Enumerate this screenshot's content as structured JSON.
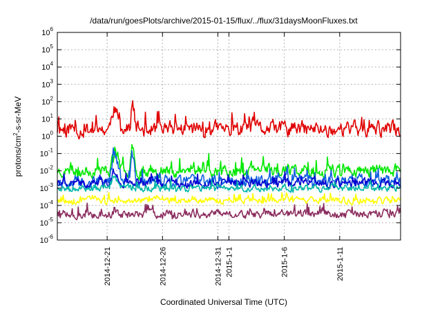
{
  "chart_data": {
    "type": "line",
    "title": "/data/run/goesPlots/archive/2015-01-15/flux/../flux/31daysMoonFluxes.txt",
    "xlabel": "Coordinated Universal Time (UTC)",
    "ylabel_parts": {
      "base": "protons/cm",
      "exp": "2",
      "rest": "-s-sr-MeV"
    },
    "yscale": "log",
    "ylim_exp": [
      -6,
      6
    ],
    "y_ticks": [
      {
        "base": "10",
        "exp": "-6"
      },
      {
        "base": "10",
        "exp": "-5"
      },
      {
        "base": "10",
        "exp": "-4"
      },
      {
        "base": "10",
        "exp": "-3"
      },
      {
        "base": "10",
        "exp": "-2"
      },
      {
        "base": "10",
        "exp": "-1"
      },
      {
        "base": "10",
        "exp": "0"
      },
      {
        "base": "10",
        "exp": "1"
      },
      {
        "base": "10",
        "exp": "2"
      },
      {
        "base": "10",
        "exp": "3"
      },
      {
        "base": "10",
        "exp": "4"
      },
      {
        "base": "10",
        "exp": "5"
      },
      {
        "base": "10",
        "exp": "6"
      }
    ],
    "x_range_days": [
      0,
      31
    ],
    "x_ticks": [
      {
        "label": "2014-12-21",
        "day": 4.5
      },
      {
        "label": "2014-12-26",
        "day": 9.5
      },
      {
        "label": "2014-12-31",
        "day": 14.5
      },
      {
        "label": "2015-1-1",
        "day": 15.5
      },
      {
        "label": "2015-1-6",
        "day": 20.5
      },
      {
        "label": "2015-1-11",
        "day": 25.5
      }
    ],
    "grid": true,
    "series": [
      {
        "color": "#e00000",
        "base_exp": 0.4,
        "noise": 0.45,
        "seed": 11,
        "events": [
          {
            "start": 4.7,
            "end": 6.0,
            "delta": 1.4
          },
          {
            "start": 6.6,
            "end": 7.2,
            "delta": 1.6
          }
        ]
      },
      {
        "color": "#00e800",
        "base_exp": -2.0,
        "noise": 0.35,
        "seed": 23,
        "events": [
          {
            "start": 4.7,
            "end": 6.2,
            "delta": 1.0
          },
          {
            "start": 6.5,
            "end": 7.3,
            "delta": 1.9
          }
        ]
      },
      {
        "color": "#1060e0",
        "base_exp": -2.6,
        "noise": 0.35,
        "seed": 37,
        "events": [
          {
            "start": 4.7,
            "end": 6.2,
            "delta": 1.6
          },
          {
            "start": 6.5,
            "end": 7.3,
            "delta": 1.4
          }
        ]
      },
      {
        "color": "#0000d0",
        "base_exp": -2.7,
        "noise": 0.25,
        "seed": 41,
        "events": [
          {
            "start": 4.8,
            "end": 6.0,
            "delta": 0.7
          }
        ]
      },
      {
        "color": "#00b8a8",
        "base_exp": -3.0,
        "noise": 0.2,
        "seed": 53,
        "events": [
          {
            "start": 4.8,
            "end": 6.0,
            "delta": 0.5
          }
        ]
      },
      {
        "color": "#ffff00",
        "base_exp": -3.7,
        "noise": 0.18,
        "seed": 67,
        "events": []
      },
      {
        "color": "#8b2c5e",
        "base_exp": -4.5,
        "noise": 0.25,
        "seed": 79,
        "events": []
      }
    ]
  }
}
